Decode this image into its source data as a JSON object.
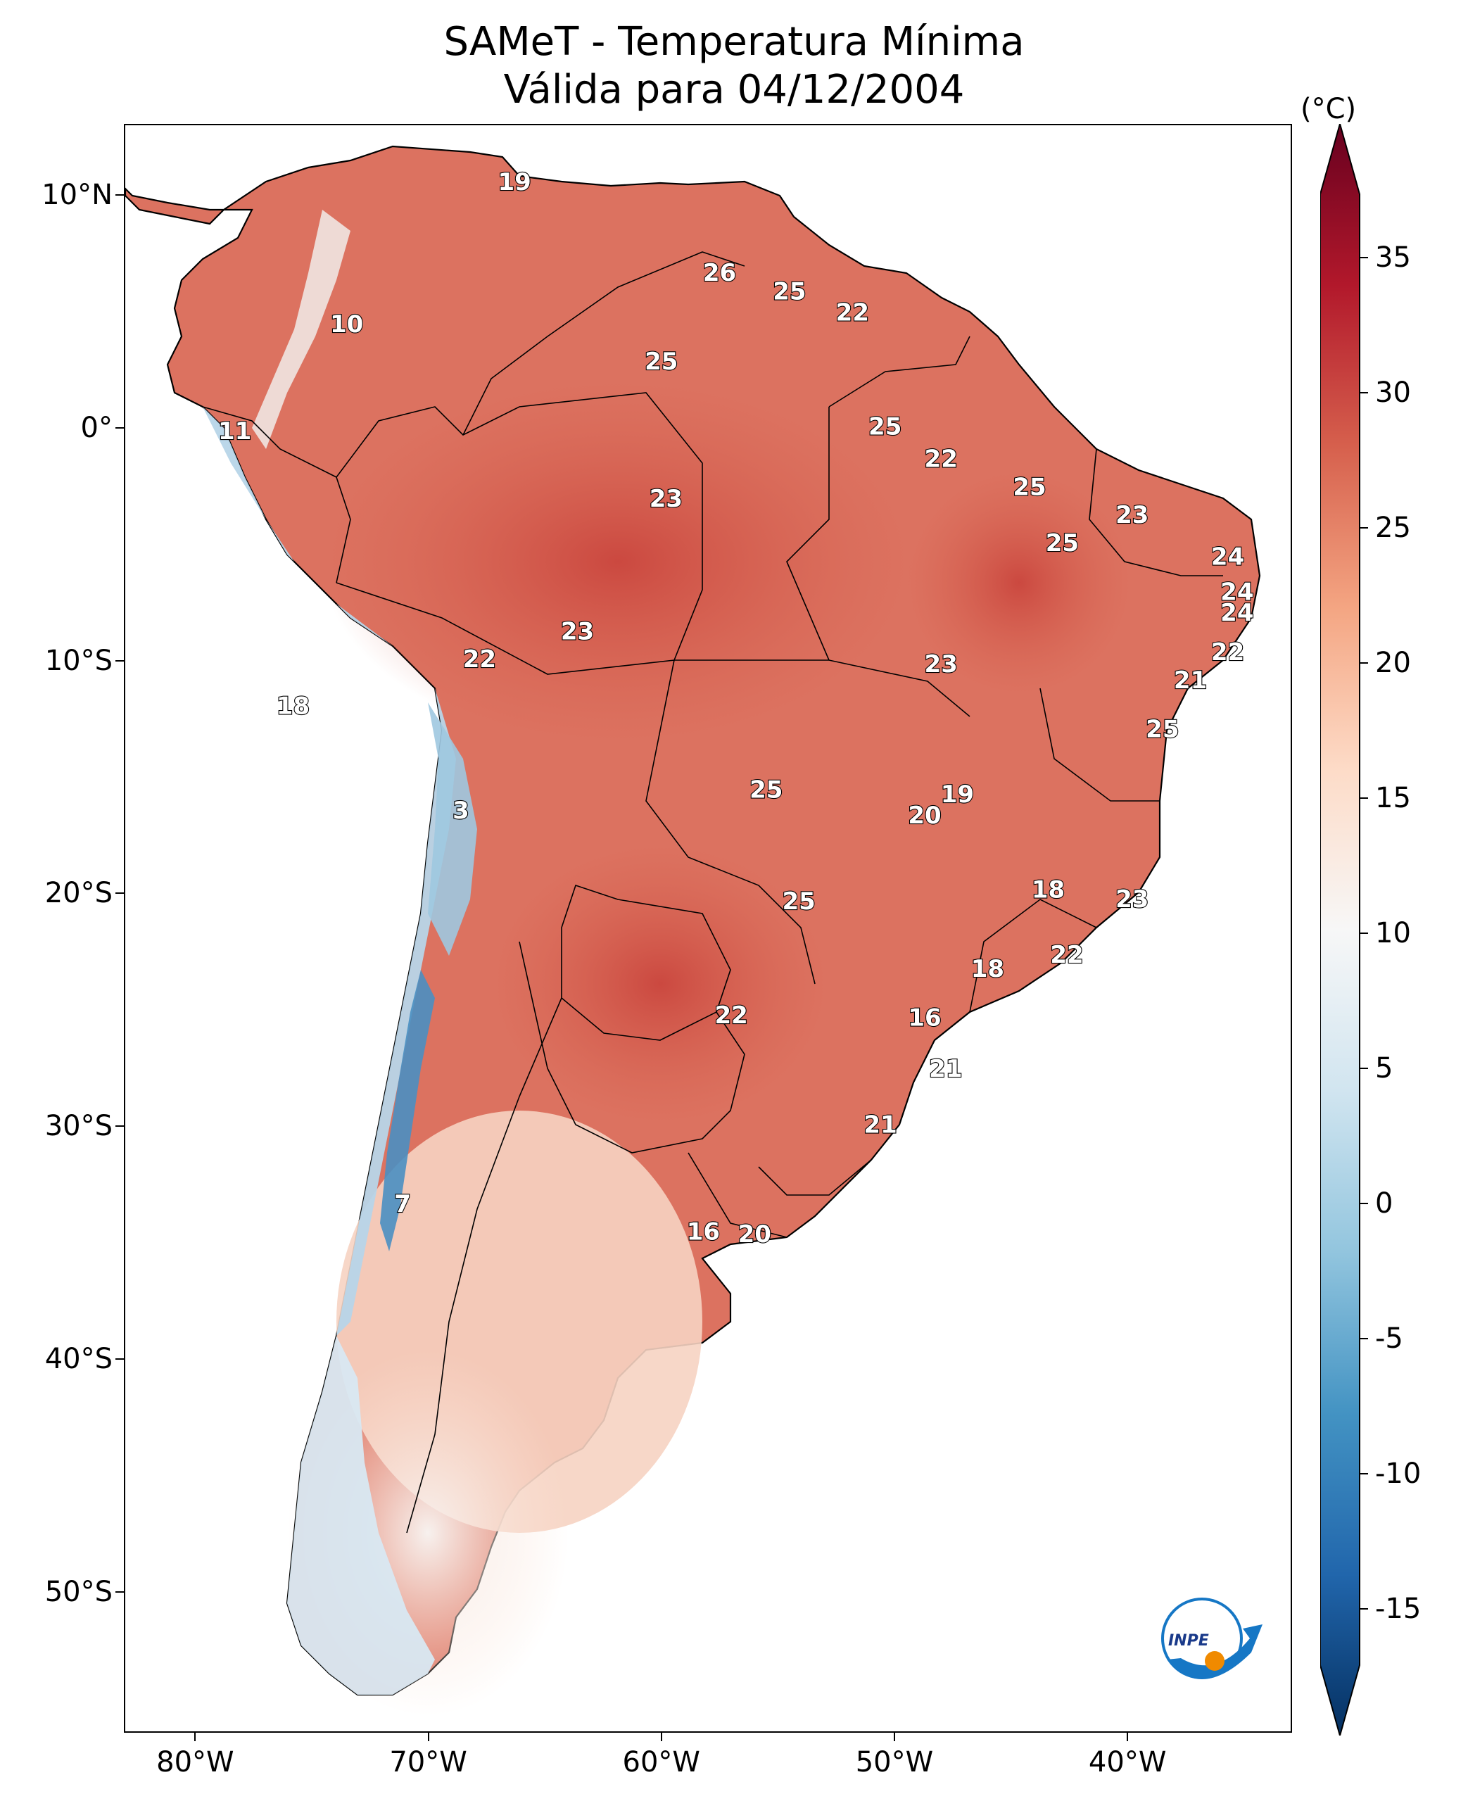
{
  "title": {
    "line1": "SAMeT - Temperatura Mínima",
    "line2": "Válida para 04/12/2004"
  },
  "colorbar": {
    "unit": "(°C)",
    "min": -15,
    "max": 35,
    "ticks": [
      "35",
      "30",
      "25",
      "20",
      "15",
      "10",
      "5",
      "0",
      "-5",
      "-10",
      "-15"
    ],
    "tick_values": [
      35,
      30,
      25,
      20,
      15,
      10,
      5,
      0,
      -5,
      -10,
      -15
    ],
    "colormap": [
      "#053061",
      "#2166ac",
      "#4393c3",
      "#92c5de",
      "#d1e5f0",
      "#f7f7f7",
      "#fddbc7",
      "#f4a582",
      "#d6604d",
      "#b2182b",
      "#67001f"
    ]
  },
  "axes": {
    "lat_labels": [
      {
        "text": "10°N",
        "lat": 10
      },
      {
        "text": "0°",
        "lat": 0
      },
      {
        "text": "10°S",
        "lat": -10
      },
      {
        "text": "20°S",
        "lat": -20
      },
      {
        "text": "30°S",
        "lat": -30
      },
      {
        "text": "40°S",
        "lat": -40
      },
      {
        "text": "50°S",
        "lat": -50
      }
    ],
    "lon_labels": [
      {
        "text": "80°W",
        "lon": -80
      },
      {
        "text": "70°W",
        "lon": -70
      },
      {
        "text": "60°W",
        "lon": -60
      },
      {
        "text": "50°W",
        "lon": -50
      },
      {
        "text": "40°W",
        "lon": -40
      }
    ],
    "lon_range": [
      -83,
      -33
    ],
    "lat_range": [
      -56,
      13
    ]
  },
  "stations": [
    {
      "text": "19",
      "lon": -66.3,
      "lat": 10.5
    },
    {
      "text": "26",
      "lon": -57.5,
      "lat": 6.6
    },
    {
      "text": "25",
      "lon": -54.5,
      "lat": 5.8
    },
    {
      "text": "22",
      "lon": -51.8,
      "lat": 4.9
    },
    {
      "text": "10",
      "lon": -73.5,
      "lat": 4.4
    },
    {
      "text": "25",
      "lon": -60.0,
      "lat": 2.8
    },
    {
      "text": "11",
      "lon": -78.3,
      "lat": -0.2
    },
    {
      "text": "25",
      "lon": -50.4,
      "lat": 0.0
    },
    {
      "text": "22",
      "lon": -48.0,
      "lat": -1.4
    },
    {
      "text": "25",
      "lon": -44.2,
      "lat": -2.6
    },
    {
      "text": "23",
      "lon": -59.8,
      "lat": -3.1
    },
    {
      "text": "23",
      "lon": -39.8,
      "lat": -3.8
    },
    {
      "text": "25",
      "lon": -42.8,
      "lat": -5.0
    },
    {
      "text": "24",
      "lon": -35.7,
      "lat": -5.6
    },
    {
      "text": "24",
      "lon": -35.3,
      "lat": -7.1
    },
    {
      "text": "24",
      "lon": -35.3,
      "lat": -8.0
    },
    {
      "text": "23",
      "lon": -63.6,
      "lat": -8.8
    },
    {
      "text": "22",
      "lon": -35.7,
      "lat": -9.7
    },
    {
      "text": "22",
      "lon": -67.8,
      "lat": -10.0
    },
    {
      "text": "23",
      "lon": -48.0,
      "lat": -10.2
    },
    {
      "text": "21",
      "lon": -37.3,
      "lat": -10.9
    },
    {
      "text": "18",
      "lon": -75.8,
      "lat": -12.0
    },
    {
      "text": "25",
      "lon": -38.5,
      "lat": -13.0
    },
    {
      "text": "25",
      "lon": -55.5,
      "lat": -15.6
    },
    {
      "text": "19",
      "lon": -47.3,
      "lat": -15.8
    },
    {
      "text": "20",
      "lon": -48.7,
      "lat": -16.7
    },
    {
      "text": "3",
      "lon": -68.6,
      "lat": -16.5
    },
    {
      "text": "18",
      "lon": -43.4,
      "lat": -19.9
    },
    {
      "text": "25",
      "lon": -54.1,
      "lat": -20.4
    },
    {
      "text": "23",
      "lon": -39.8,
      "lat": -20.3
    },
    {
      "text": "22",
      "lon": -42.6,
      "lat": -22.7
    },
    {
      "text": "18",
      "lon": -46.0,
      "lat": -23.3
    },
    {
      "text": "22",
      "lon": -57.0,
      "lat": -25.3
    },
    {
      "text": "16",
      "lon": -48.7,
      "lat": -25.4
    },
    {
      "text": "21",
      "lon": -47.8,
      "lat": -27.6
    },
    {
      "text": "21",
      "lon": -50.6,
      "lat": -30.0
    },
    {
      "text": "7",
      "lon": -71.1,
      "lat": -33.4
    },
    {
      "text": "16",
      "lon": -58.2,
      "lat": -34.6
    },
    {
      "text": "20",
      "lon": -56.0,
      "lat": -34.7
    }
  ]
}
